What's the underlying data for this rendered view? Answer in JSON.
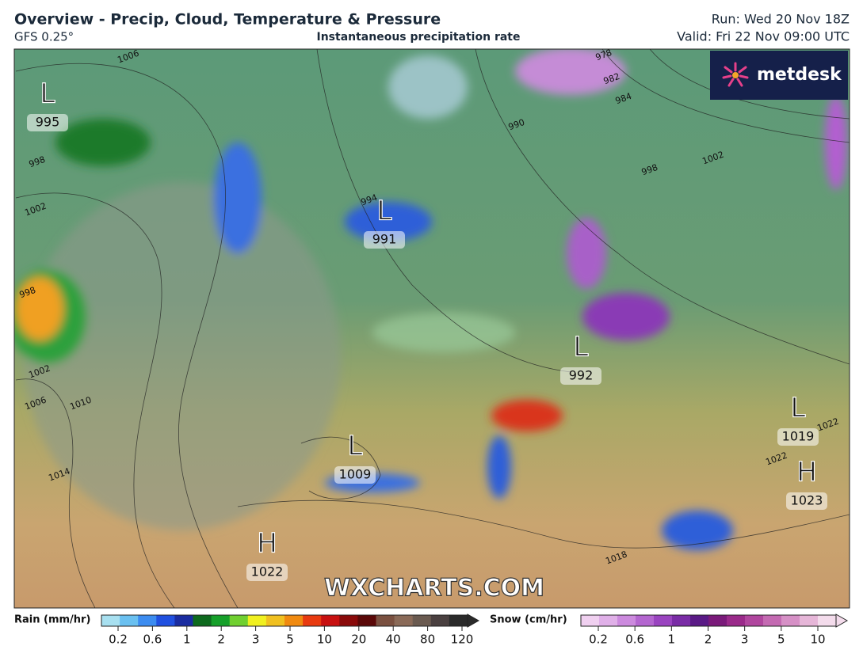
{
  "header": {
    "title": "Overview - Precip, Cloud, Temperature & Pressure",
    "model": "GFS 0.25°",
    "subtitle": "Instantaneous precipitation rate",
    "run": "Run: Wed 20 Nov 18Z",
    "valid": "Valid: Fri 22 Nov 09:00 UTC"
  },
  "logo": "metdesk",
  "watermark": "WXCHARTS.COM",
  "pressure_centers": [
    {
      "symbol": "L",
      "value": 995
    },
    {
      "symbol": "L",
      "value": 991
    },
    {
      "symbol": "L",
      "value": 992
    },
    {
      "symbol": "L",
      "value": 1019
    },
    {
      "symbol": "H",
      "value": 1023
    },
    {
      "symbol": "L",
      "value": 1009
    },
    {
      "symbol": "H",
      "value": 1022
    }
  ],
  "isobar_labels": [
    1006,
    978,
    982,
    984,
    990,
    994,
    998,
    998,
    1002,
    1002,
    998,
    1002,
    1006,
    1010,
    1014,
    1018,
    1022,
    1022
  ],
  "legend": {
    "rain": {
      "title": "Rain (mm/hr)",
      "ticks": [
        0.2,
        0.6,
        1,
        2,
        3,
        5,
        10,
        20,
        40,
        80,
        120
      ]
    },
    "snow": {
      "title": "Snow (cm/hr)",
      "ticks": [
        0.2,
        0.6,
        1,
        2,
        3,
        5,
        10
      ]
    }
  }
}
